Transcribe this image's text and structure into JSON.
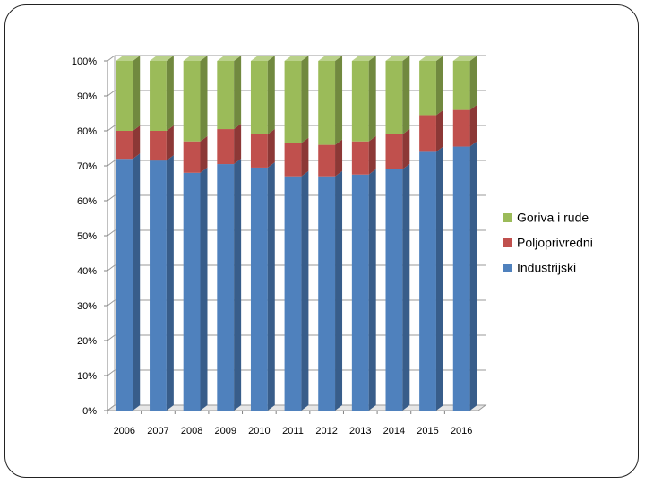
{
  "chart_data": {
    "type": "bar",
    "stacked": true,
    "normalized": true,
    "title": "",
    "xlabel": "",
    "ylabel": "",
    "ylim": [
      0,
      100
    ],
    "y_ticks": [
      "0%",
      "10%",
      "20%",
      "30%",
      "40%",
      "50%",
      "60%",
      "70%",
      "80%",
      "90%",
      "100%"
    ],
    "categories": [
      "2006",
      "2007",
      "2008",
      "2009",
      "2010",
      "2011",
      "2012",
      "2013",
      "2014",
      "2015",
      "2016"
    ],
    "series": [
      {
        "name": "Industrijski",
        "color": "#4F81BD",
        "side": "#385D8A",
        "top": "#7BA2D5",
        "values": [
          72,
          71.5,
          68,
          70.5,
          69.5,
          67,
          67,
          67.5,
          69,
          74,
          75.5
        ]
      },
      {
        "name": "Poljoprivredni",
        "color": "#C0504D",
        "side": "#8C3836",
        "top": "#D88583",
        "values": [
          8,
          8.5,
          9,
          10,
          9.5,
          9.5,
          9,
          9.5,
          10,
          10.5,
          10.5
        ]
      },
      {
        "name": "Goriva i rude",
        "color": "#9BBB59",
        "side": "#71893F",
        "top": "#B9D189",
        "values": [
          20,
          20,
          23,
          19.5,
          21,
          23.5,
          24,
          23,
          21,
          15.5,
          14
        ]
      }
    ],
    "grid": true,
    "legend": "right",
    "legend_order": [
      "Goriva i rude",
      "Poljoprivredni",
      "Industrijski"
    ]
  }
}
